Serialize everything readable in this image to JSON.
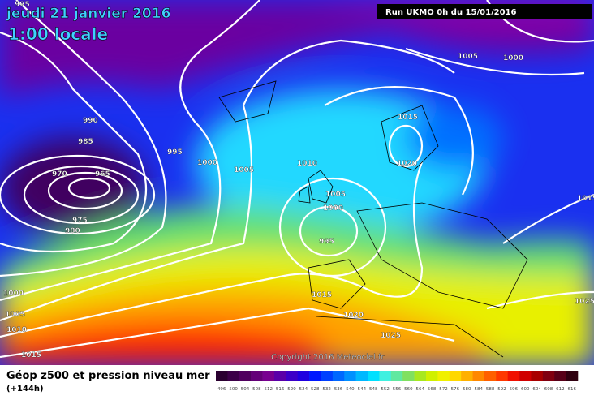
{
  "header": {
    "date": "jeudi 21 janvier 2016",
    "time": "1:00 locale",
    "run": "Run UKMO 0h du 15/01/2016"
  },
  "footer": {
    "title": "Géop z500 et pression niveau mer",
    "lead": "(+144h)",
    "copyright": "Copyright 2016 Meteociel.fr"
  },
  "isobar_labels": [
    "995",
    "990",
    "985",
    "970",
    "965",
    "975",
    "980",
    "995",
    "1000",
    "1005",
    "1010",
    "1005",
    "1000",
    "995",
    "1015",
    "1020",
    "1005",
    "1000",
    "1015",
    "1000",
    "1005",
    "1010",
    "1015",
    "1015",
    "1020",
    "1025",
    "1025"
  ],
  "legend": {
    "labels": [
      "496",
      "500",
      "504",
      "508",
      "512",
      "516",
      "520",
      "524",
      "528",
      "532",
      "536",
      "540",
      "544",
      "548",
      "552",
      "556",
      "560",
      "564",
      "568",
      "572",
      "576",
      "580",
      "584",
      "588",
      "592",
      "596",
      "600",
      "604",
      "608",
      "612",
      "616"
    ],
    "colors": [
      "#2a0030",
      "#3c0048",
      "#50005e",
      "#640078",
      "#780090",
      "#5a00a8",
      "#3c00c8",
      "#2000e0",
      "#0018ff",
      "#0040ff",
      "#0068ff",
      "#0090ff",
      "#00b8ff",
      "#00e0ff",
      "#40f0e0",
      "#60e8a0",
      "#80e060",
      "#a8e820",
      "#d0f000",
      "#f0f000",
      "#ffd800",
      "#ffb000",
      "#ff8800",
      "#ff6000",
      "#ff3800",
      "#f01000",
      "#d00000",
      "#a80000",
      "#800010",
      "#580018",
      "#300010"
    ]
  }
}
